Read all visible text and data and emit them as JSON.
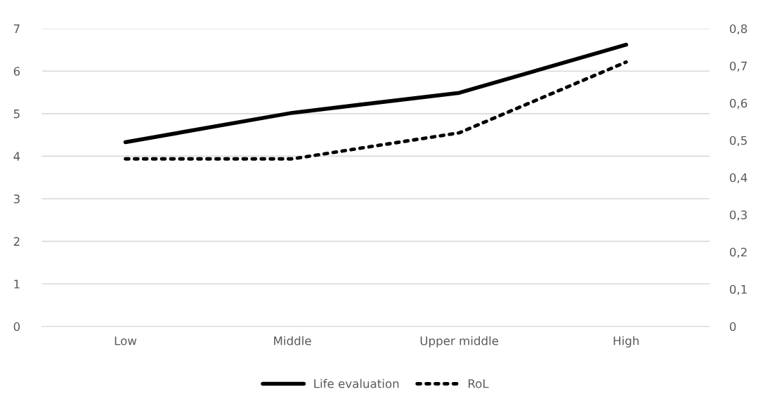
{
  "chart_data": {
    "type": "line",
    "categories": [
      "Low",
      "Middle",
      "Upper middle",
      "High"
    ],
    "series": [
      {
        "name": "Life evaluation",
        "color": "#000000",
        "line_style": "solid",
        "values": [
          4.33,
          5.02,
          5.49,
          6.62
        ]
      },
      {
        "name": "RoL",
        "color": "#000000",
        "line_style": "dotted",
        "axis": "y2",
        "values": [
          0.45,
          0.45,
          0.52,
          0.71
        ]
      }
    ],
    "ylim": [
      0,
      7
    ],
    "yticks": [
      0,
      1,
      2,
      3,
      4,
      5,
      6,
      7
    ],
    "y2lim": [
      0,
      0.8
    ],
    "y2ticks": [
      {
        "value": 0,
        "label": "0"
      },
      {
        "value": 0.1,
        "label": "0,1"
      },
      {
        "value": 0.2,
        "label": "0,2"
      },
      {
        "value": 0.3,
        "label": "0,3"
      },
      {
        "value": 0.4,
        "label": "0,4"
      },
      {
        "value": 0.5,
        "label": "0,5"
      },
      {
        "value": 0.6,
        "label": "0,6"
      },
      {
        "value": 0.7,
        "label": "0,7"
      },
      {
        "value": 0.8,
        "label": "0,8"
      }
    ],
    "grid": "y",
    "legend": "bottom",
    "marker": "none"
  }
}
